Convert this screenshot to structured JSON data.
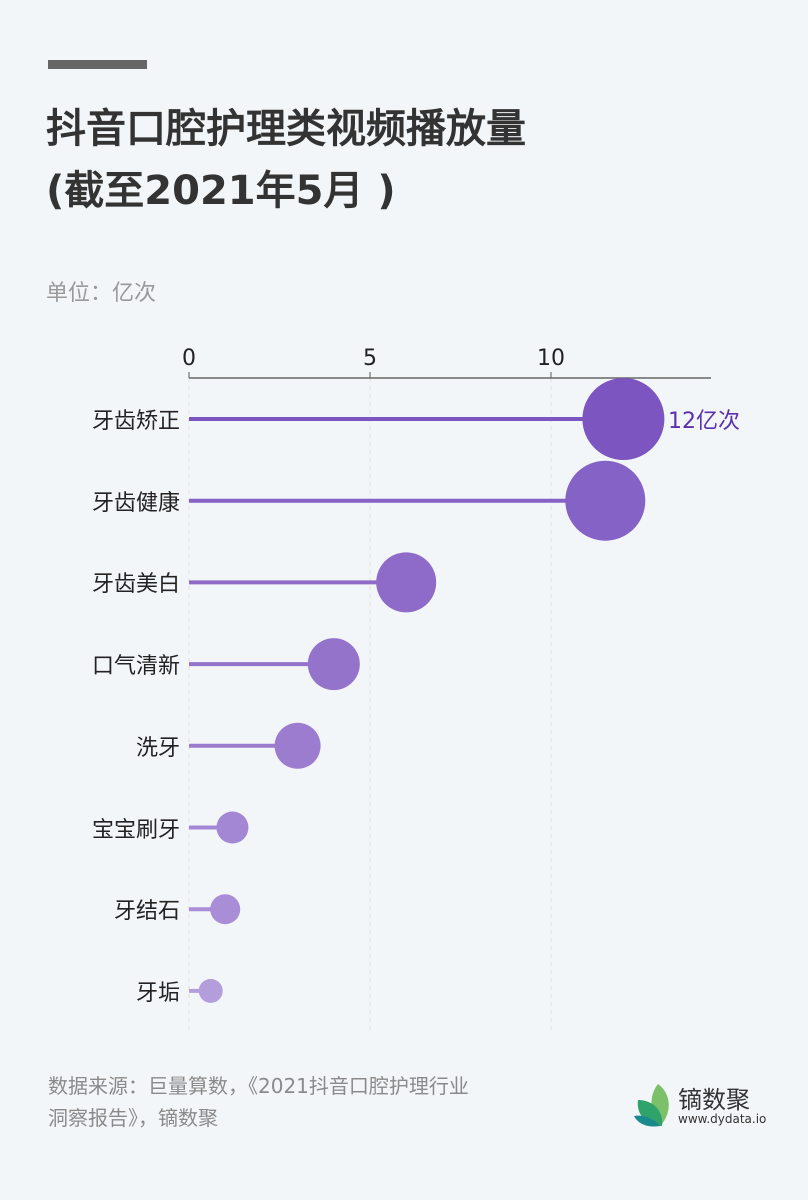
{
  "header": {
    "title_line1": "抖音口腔护理类视频播放量",
    "title_line2": "(截至2021年5月 )",
    "unit": "单位：亿次"
  },
  "chart_data": {
    "type": "lollipop",
    "title": "抖音口腔护理类视频播放量(截至2021年5月 )",
    "unit": "亿次",
    "xlabel": "",
    "ylabel": "",
    "xlim": [
      0,
      14.5
    ],
    "xticks": [
      0,
      5,
      10
    ],
    "grid": true,
    "categories": [
      "牙齿矫正",
      "牙齿健康",
      "牙齿美白",
      "口气清新",
      "洗牙",
      "宝宝刷牙",
      "牙结石",
      "牙垢"
    ],
    "values": [
      12,
      11.5,
      6,
      4,
      3,
      1.2,
      1,
      0.6
    ],
    "annotations": [
      {
        "category": "牙齿矫正",
        "text": "12亿次"
      }
    ],
    "colors": [
      "#7d55c0",
      "#8562c5",
      "#8e6bc9",
      "#9473cb",
      "#9b7ccf",
      "#a487d4",
      "#a98dd6",
      "#b39ddb"
    ]
  },
  "annotation": {
    "top_value_label": "12亿次"
  },
  "footer": {
    "source_line1": "数据来源：巨量算数，《2021抖音口腔护理行业",
    "source_line2": "洞察报告》，镝数聚",
    "logo_name": "镝数聚",
    "logo_url": "www.dydata.io"
  },
  "colors": {
    "background": "#f3f6f9",
    "title": "#333333",
    "muted": "#999999",
    "annotation": "#5a2fb0",
    "logo_light_green": "#7cc16a",
    "logo_green": "#2fa36b",
    "logo_teal": "#1b8a8c"
  }
}
